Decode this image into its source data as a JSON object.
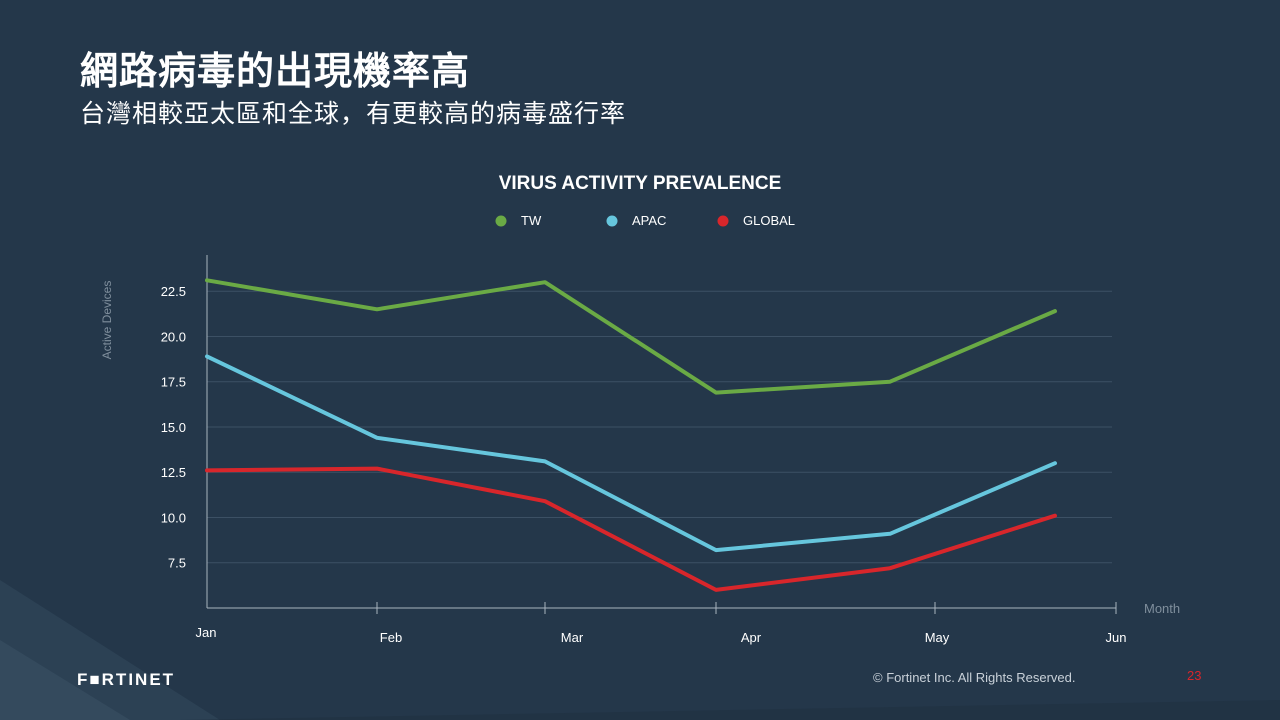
{
  "slide": {
    "title": "網路病毒的出現機率高",
    "subtitle": "台灣相較亞太區和全球，有更較高的病毒盛行率",
    "logo": "F■RTINET",
    "copyright": "© Fortinet Inc. All Rights Reserved.",
    "page_number": "23"
  },
  "colors": {
    "background": "#24374a",
    "tw": "#6aaa45",
    "apac": "#66c6dd",
    "global": "#d8262b",
    "accent_red": "#d8262b"
  },
  "chart_data": {
    "type": "line",
    "title": "VIRUS ACTIVITY PREVALENCE",
    "xlabel": "Month",
    "ylabel": "Active Devices",
    "categories": [
      "Jan",
      "Feb",
      "Mar",
      "Apr",
      "May",
      "Jun"
    ],
    "y_ticks": [
      "22.5",
      "20.0",
      "17.5",
      "15.0",
      "12.5",
      "10.0",
      "7.5"
    ],
    "ylim": [
      5.0,
      24.5
    ],
    "grid": true,
    "legend_position": "top-center",
    "series": [
      {
        "name": "TW",
        "color": "#6aaa45",
        "values": [
          23.1,
          21.5,
          23.0,
          16.9,
          17.5,
          21.4
        ]
      },
      {
        "name": "APAC",
        "color": "#66c6dd",
        "values": [
          18.9,
          14.4,
          13.1,
          8.2,
          9.1,
          13.0
        ]
      },
      {
        "name": "GLOBAL",
        "color": "#d8262b",
        "values": [
          12.6,
          12.7,
          10.9,
          6.0,
          7.2,
          10.1
        ]
      }
    ]
  }
}
